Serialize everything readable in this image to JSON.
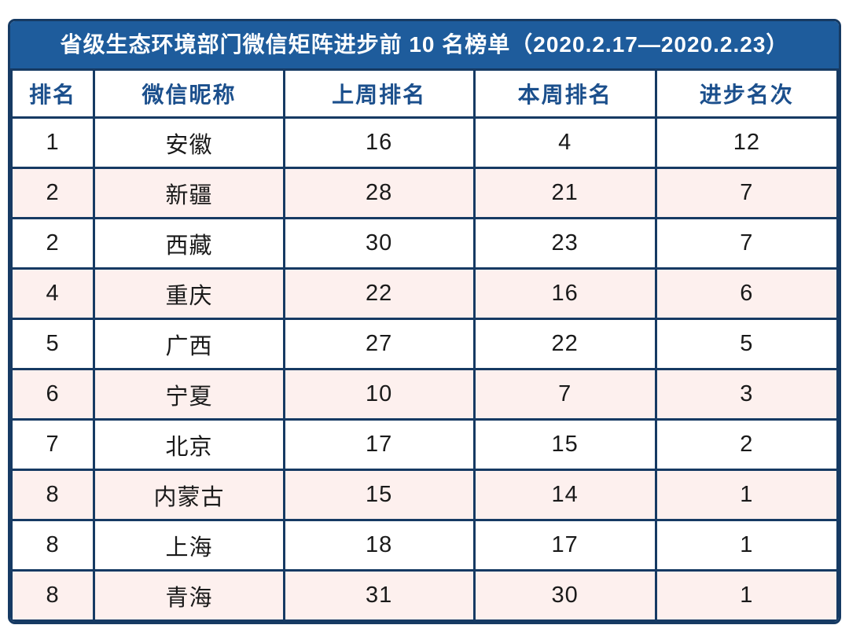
{
  "title": "省级生态环境部门微信矩阵进步前 10 名榜单（2020.2.17—2020.2.23）",
  "colors": {
    "title_bar_bg": "#1e5c9c",
    "border": "#163a63",
    "header_text": "#1b4f8c",
    "alt_row_bg": "#fdf0ee",
    "cell_text": "#1a1a1a",
    "title_text": "#ffffff"
  },
  "table": {
    "columns": [
      "排名",
      "微信昵称",
      "上周排名",
      "本周排名",
      "进步名次"
    ],
    "column_widths_pct": [
      10,
      23,
      23,
      22,
      22
    ],
    "rows": [
      [
        "1",
        "安徽",
        "16",
        "4",
        "12"
      ],
      [
        "2",
        "新疆",
        "28",
        "21",
        "7"
      ],
      [
        "2",
        "西藏",
        "30",
        "23",
        "7"
      ],
      [
        "4",
        "重庆",
        "22",
        "16",
        "6"
      ],
      [
        "5",
        "广西",
        "27",
        "22",
        "5"
      ],
      [
        "6",
        "宁夏",
        "10",
        "7",
        "3"
      ],
      [
        "7",
        "北京",
        "17",
        "15",
        "2"
      ],
      [
        "8",
        "内蒙古",
        "15",
        "14",
        "1"
      ],
      [
        "8",
        "上海",
        "18",
        "17",
        "1"
      ],
      [
        "8",
        "青海",
        "31",
        "30",
        "1"
      ]
    ]
  },
  "chart_data": {
    "type": "table",
    "title": "省级生态环境部门微信矩阵进步前 10 名榜单（2020.2.17—2020.2.23）",
    "columns": [
      "排名",
      "微信昵称",
      "上周排名",
      "本周排名",
      "进步名次"
    ],
    "rows": [
      {
        "排名": 1,
        "微信昵称": "安徽",
        "上周排名": 16,
        "本周排名": 4,
        "进步名次": 12
      },
      {
        "排名": 2,
        "微信昵称": "新疆",
        "上周排名": 28,
        "本周排名": 21,
        "进步名次": 7
      },
      {
        "排名": 2,
        "微信昵称": "西藏",
        "上周排名": 30,
        "本周排名": 23,
        "进步名次": 7
      },
      {
        "排名": 4,
        "微信昵称": "重庆",
        "上周排名": 22,
        "本周排名": 16,
        "进步名次": 6
      },
      {
        "排名": 5,
        "微信昵称": "广西",
        "上周排名": 27,
        "本周排名": 22,
        "进步名次": 5
      },
      {
        "排名": 6,
        "微信昵称": "宁夏",
        "上周排名": 10,
        "本周排名": 7,
        "进步名次": 3
      },
      {
        "排名": 7,
        "微信昵称": "北京",
        "上周排名": 17,
        "本周排名": 15,
        "进步名次": 2
      },
      {
        "排名": 8,
        "微信昵称": "内蒙古",
        "上周排名": 15,
        "本周排名": 14,
        "进步名次": 1
      },
      {
        "排名": 8,
        "微信昵称": "上海",
        "上周排名": 18,
        "本周排名": 17,
        "进步名次": 1
      },
      {
        "排名": 8,
        "微信昵称": "青海",
        "上周排名": 31,
        "本周排名": 30,
        "进步名次": 1
      }
    ],
    "layout": {
      "striped": true,
      "stripe_color": "#fdf0ee",
      "header_style": "blue-text-on-white",
      "title_style": "white-on-blue-bar"
    }
  }
}
